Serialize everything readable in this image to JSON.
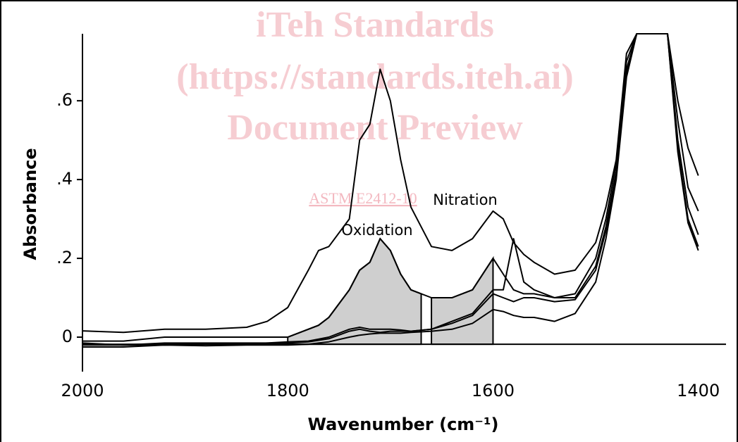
{
  "chart_data": {
    "type": "line",
    "xlabel": "Wavenumber (cm⁻¹)",
    "ylabel": "Absorbance",
    "xlim": [
      2000,
      1373
    ],
    "ylim": [
      -0.0875,
      0.77
    ],
    "xticks": [
      2000,
      1800,
      1600,
      1400
    ],
    "yticks": [
      0,
      {
        "value": 0.2,
        "label": ".2"
      },
      {
        "value": 0.4,
        "label": ".4"
      },
      {
        "value": 0.6,
        "label": ".6"
      }
    ],
    "baseline": -0.018,
    "x": [
      2000,
      1960,
      1920,
      1880,
      1840,
      1820,
      1800,
      1780,
      1770,
      1760,
      1740,
      1730,
      1720,
      1710,
      1700,
      1690,
      1680,
      1660,
      1640,
      1620,
      1600,
      1590,
      1580,
      1570,
      1560,
      1540,
      1520,
      1500,
      1490,
      1480,
      1470,
      1460,
      1450,
      1440,
      1430,
      1420,
      1410,
      1400
    ],
    "series": [
      {
        "color": "#000000",
        "values": [
          0.016,
          0.012,
          0.02,
          0.02,
          0.025,
          0.04,
          0.075,
          0.17,
          0.22,
          0.23,
          0.3,
          0.5,
          0.54,
          0.68,
          0.6,
          0.45,
          0.33,
          0.23,
          0.22,
          0.25,
          0.32,
          0.3,
          0.24,
          0.21,
          0.19,
          0.16,
          0.17,
          0.24,
          0.33,
          0.45,
          0.72,
          0.77,
          0.77,
          0.77,
          0.77,
          0.6,
          0.48,
          0.41
        ]
      },
      {
        "color": "#000000",
        "values": [
          -0.01,
          -0.01,
          0,
          0,
          0,
          0,
          0,
          0.02,
          0.03,
          0.05,
          0.12,
          0.17,
          0.19,
          0.25,
          0.22,
          0.16,
          0.12,
          0.1,
          0.1,
          0.12,
          0.2,
          0.16,
          0.12,
          0.11,
          0.11,
          0.1,
          0.11,
          0.2,
          0.3,
          0.44,
          0.7,
          0.77,
          0.77,
          0.77,
          0.77,
          0.55,
          0.38,
          0.32
        ]
      },
      {
        "color": "#000000",
        "values": [
          -0.02,
          -0.02,
          -0.015,
          -0.015,
          -0.015,
          -0.015,
          -0.012,
          -0.01,
          -0.005,
          0,
          0.02,
          0.025,
          0.02,
          0.02,
          0.02,
          0.018,
          0.015,
          0.02,
          0.04,
          0.06,
          0.12,
          0.12,
          0.25,
          0.14,
          0.12,
          0.1,
          0.1,
          0.18,
          0.28,
          0.42,
          0.68,
          0.77,
          0.77,
          0.77,
          0.77,
          0.5,
          0.33,
          0.26
        ]
      },
      {
        "color": "#000000",
        "values": [
          -0.015,
          -0.02,
          -0.02,
          -0.018,
          -0.018,
          -0.015,
          -0.015,
          -0.012,
          -0.008,
          -0.004,
          0.015,
          0.02,
          0.015,
          0.012,
          0.015,
          0.015,
          0.015,
          0.02,
          0.035,
          0.055,
          0.11,
          0.1,
          0.09,
          0.1,
          0.1,
          0.09,
          0.095,
          0.17,
          0.27,
          0.41,
          0.67,
          0.77,
          0.77,
          0.77,
          0.77,
          0.48,
          0.3,
          0.23
        ]
      },
      {
        "color": "#000000",
        "values": [
          -0.025,
          -0.025,
          -0.02,
          -0.022,
          -0.02,
          -0.02,
          -0.02,
          -0.018,
          -0.015,
          -0.012,
          0,
          0.005,
          0.008,
          0.01,
          0.01,
          0.01,
          0.012,
          0.015,
          0.02,
          0.035,
          0.07,
          0.065,
          0.055,
          0.05,
          0.05,
          0.04,
          0.06,
          0.14,
          0.25,
          0.4,
          0.66,
          0.77,
          0.77,
          0.77,
          0.77,
          0.47,
          0.29,
          0.22
        ]
      }
    ],
    "shaded": [
      {
        "from": 1800,
        "to": 1670,
        "series": 1
      },
      {
        "from": 1660,
        "to": 1600,
        "series": 1
      }
    ],
    "annotations": [
      "Oxidation",
      "Nitration"
    ],
    "watermark": [
      "iTeh Standards",
      "(https://standards.iteh.ai)",
      "Document Preview",
      "ASTM E2412-10"
    ]
  }
}
